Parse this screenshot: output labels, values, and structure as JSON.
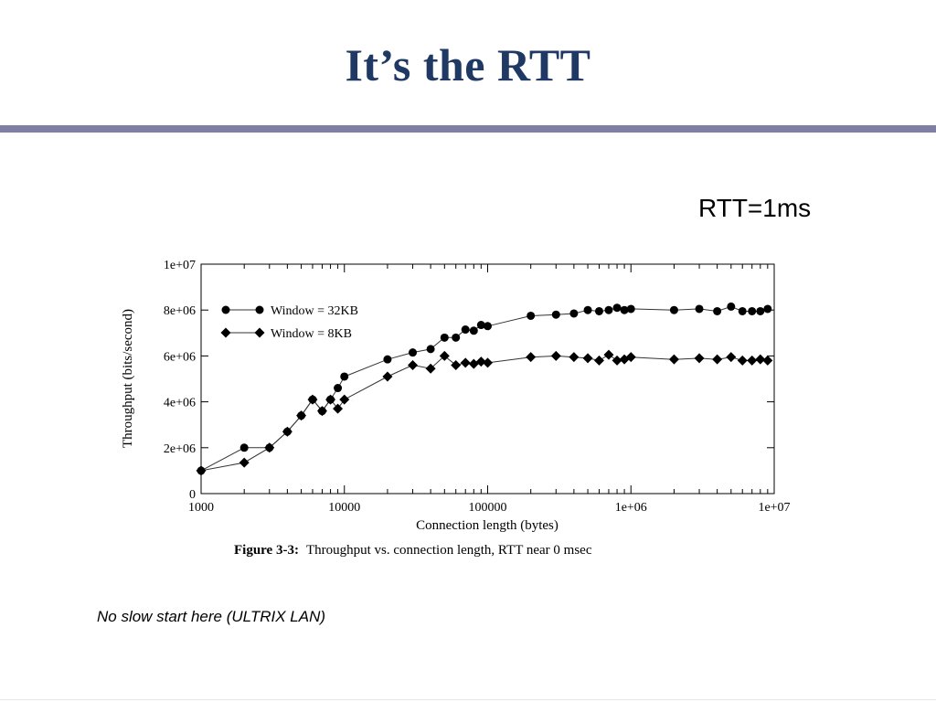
{
  "slide": {
    "title": "It’s the RTT",
    "rtt_label": "RTT=1ms",
    "note": "No slow start here (ULTRIX LAN)"
  },
  "chart_data": {
    "type": "line",
    "xscale": "log",
    "xlim": [
      1000,
      10000000
    ],
    "ylim": [
      0,
      10000000
    ],
    "xlabel": "Connection length (bytes)",
    "ylabel": "Throughput (bits/second)",
    "xticks": [
      "1000",
      "10000",
      "100000",
      "1e+06",
      "1e+07"
    ],
    "yticks": [
      "0",
      "2e+06",
      "4e+06",
      "6e+06",
      "8e+06",
      "1e+07"
    ],
    "legend_position": "top-left",
    "caption_label": "Figure 3-3:",
    "caption_text": "Throughput vs. connection length, RTT near 0 msec",
    "series": [
      {
        "name": "Window = 32KB",
        "marker": "circle",
        "x": [
          1000,
          2000,
          3000,
          4000,
          5000,
          6000,
          7000,
          8000,
          9000,
          10000,
          20000,
          30000,
          40000,
          50000,
          60000,
          70000,
          80000,
          90000,
          100000,
          200000,
          300000,
          400000,
          500000,
          600000,
          700000,
          800000,
          900000,
          1000000,
          2000000,
          3000000,
          4000000,
          5000000,
          6000000,
          7000000,
          8000000,
          9000000
        ],
        "y": [
          1000000,
          2000000,
          2000000,
          2700000,
          3400000,
          4100000,
          3600000,
          4100000,
          4600000,
          5100000,
          5850000,
          6150000,
          6300000,
          6800000,
          6800000,
          7150000,
          7100000,
          7350000,
          7300000,
          7750000,
          7800000,
          7850000,
          8000000,
          7950000,
          8000000,
          8100000,
          8000000,
          8050000,
          8000000,
          8050000,
          7950000,
          8150000,
          7950000,
          7950000,
          7950000,
          8050000
        ]
      },
      {
        "name": "Window = 8KB",
        "marker": "diamond",
        "x": [
          1000,
          2000,
          3000,
          4000,
          5000,
          6000,
          7000,
          8000,
          9000,
          10000,
          20000,
          30000,
          40000,
          50000,
          60000,
          70000,
          80000,
          90000,
          100000,
          200000,
          300000,
          400000,
          500000,
          600000,
          700000,
          800000,
          900000,
          1000000,
          2000000,
          3000000,
          4000000,
          5000000,
          6000000,
          7000000,
          8000000,
          9000000
        ],
        "y": [
          1000000,
          1350000,
          2000000,
          2700000,
          3400000,
          4100000,
          3600000,
          4100000,
          3700000,
          4100000,
          5100000,
          5600000,
          5450000,
          6000000,
          5600000,
          5700000,
          5650000,
          5750000,
          5700000,
          5950000,
          6000000,
          5950000,
          5900000,
          5800000,
          6050000,
          5800000,
          5850000,
          5950000,
          5850000,
          5900000,
          5850000,
          5950000,
          5800000,
          5800000,
          5850000,
          5800000
        ]
      }
    ]
  }
}
